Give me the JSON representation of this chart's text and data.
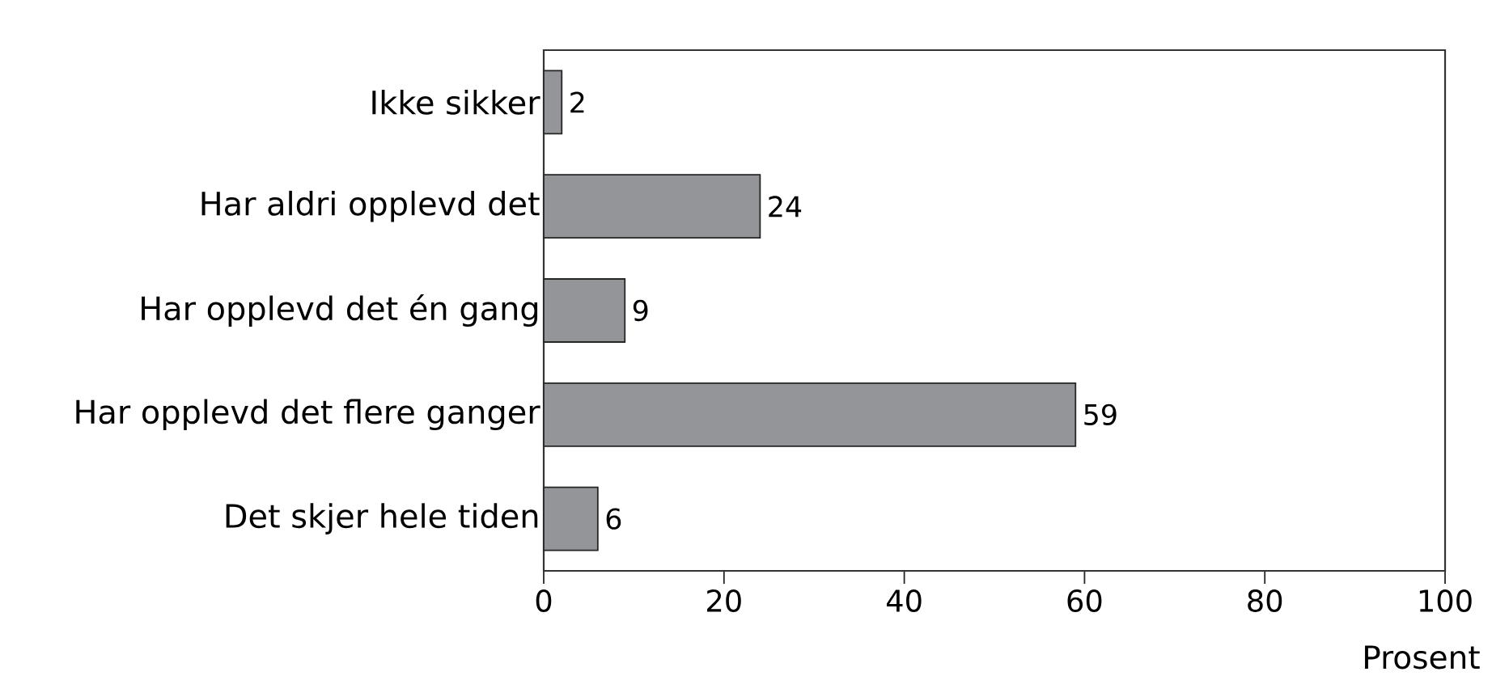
{
  "chart_data": {
    "type": "bar",
    "orientation": "horizontal",
    "categories": [
      "Ikke sikker",
      "Har aldri opplevd det",
      "Har opplevd det én gang",
      "Har opplevd det flere ganger",
      "Det skjer hele tiden"
    ],
    "values": [
      2,
      24,
      9,
      59,
      6
    ],
    "color": "#939598",
    "xlabel": "Prosent",
    "xlim": [
      0,
      100
    ],
    "xticks": [
      0,
      20,
      40,
      60,
      80,
      100
    ],
    "data_labels": true
  }
}
